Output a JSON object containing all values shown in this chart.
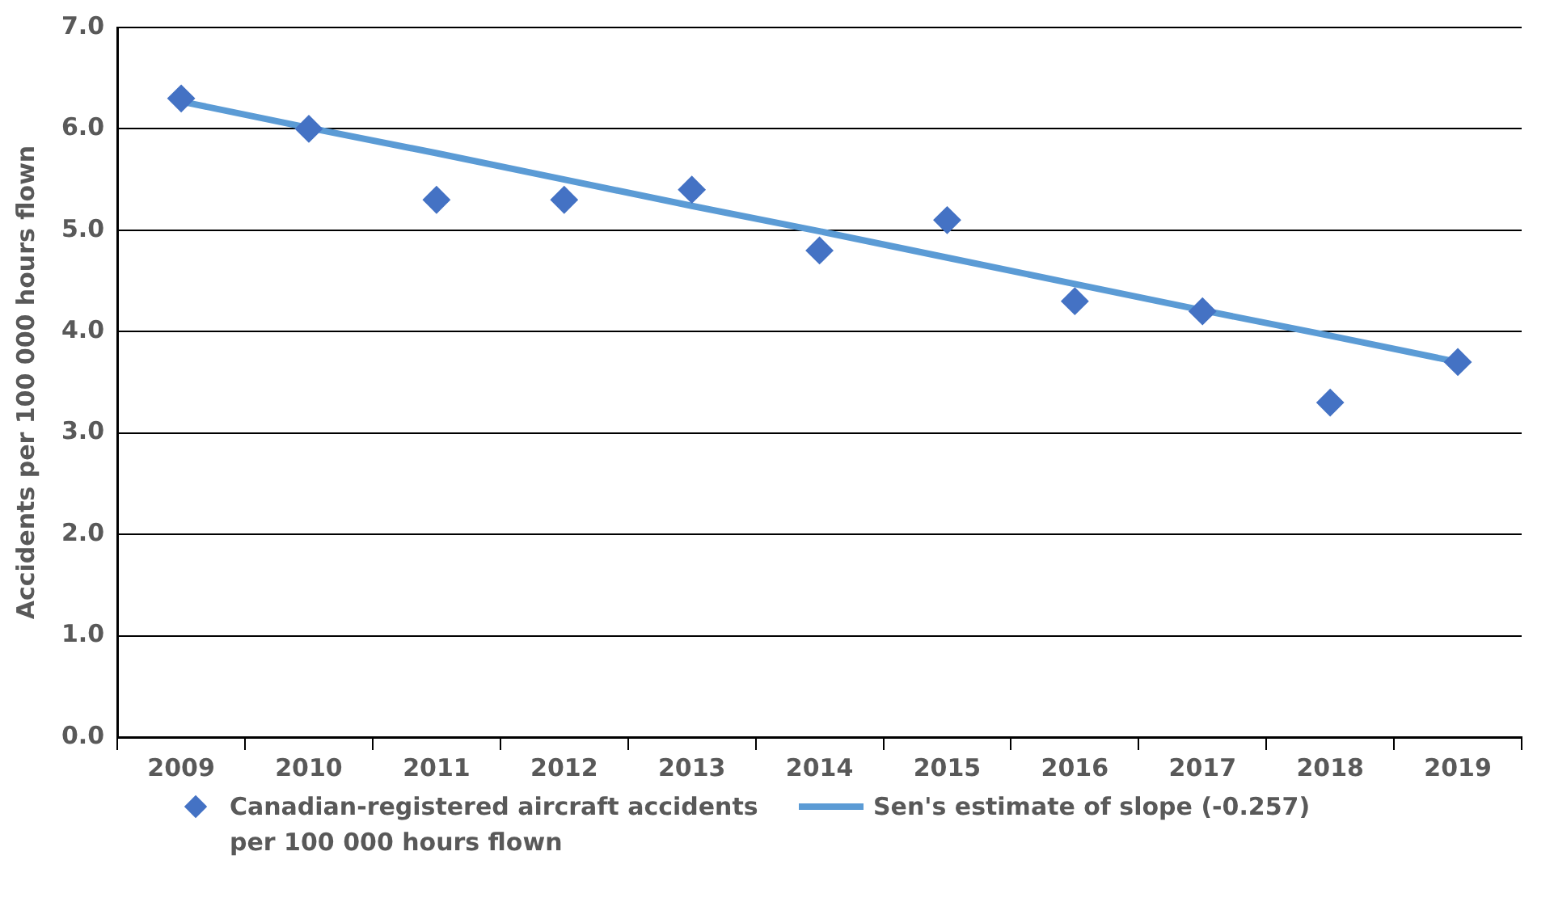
{
  "chart_data": {
    "type": "scatter",
    "ylabel": "Accidents per 100 000 hours flown",
    "categories": [
      "2009",
      "2010",
      "2011",
      "2012",
      "2013",
      "2014",
      "2015",
      "2016",
      "2017",
      "2018",
      "2019"
    ],
    "series": [
      {
        "name": "Canadian-registered aircraft accidents per 100 000 hours flown",
        "color": "#4472c4",
        "marker": "diamond",
        "values": [
          6.3,
          6.0,
          5.3,
          5.3,
          5.4,
          4.8,
          5.1,
          4.3,
          4.2,
          3.3,
          3.7
        ]
      },
      {
        "name": "Sen's estimate of slope (-0.257)",
        "type": "line",
        "color": "#5b9bd5",
        "marker": "none",
        "values": [
          6.27,
          6.01,
          5.76,
          5.5,
          5.24,
          4.99,
          4.73,
          4.47,
          4.21,
          3.96,
          3.7
        ]
      }
    ],
    "ylim": [
      0,
      7
    ],
    "yticks": [
      {
        "value": 0,
        "label": "0.0"
      },
      {
        "value": 1,
        "label": "1.0"
      },
      {
        "value": 2,
        "label": "2.0"
      },
      {
        "value": 3,
        "label": "3.0"
      },
      {
        "value": 4,
        "label": "4.0"
      },
      {
        "value": 5,
        "label": "5.0"
      },
      {
        "value": 6,
        "label": "6.0"
      },
      {
        "value": 7,
        "label": "7.0"
      }
    ],
    "grid": "y",
    "legend": "bottom"
  }
}
